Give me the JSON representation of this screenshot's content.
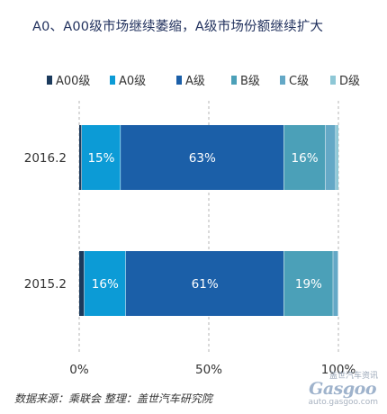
{
  "chart_data": {
    "type": "bar",
    "orientation": "horizontal",
    "stacked": true,
    "title": "A0、A00级市场继续萎缩，A级市场份额继续扩大",
    "categories": [
      "2016.2",
      "2015.2"
    ],
    "series": [
      {
        "name": "A00级",
        "color": "#1b3a5c",
        "values": [
          1,
          2
        ],
        "labels": [
          "",
          ""
        ]
      },
      {
        "name": "A0级",
        "color": "#0c9bd6",
        "values": [
          15,
          16
        ],
        "labels": [
          "15%",
          "16%"
        ]
      },
      {
        "name": "A级",
        "color": "#1b5fa8",
        "values": [
          63,
          61
        ],
        "labels": [
          "63%",
          "61%"
        ]
      },
      {
        "name": "B级",
        "color": "#4ba0b8",
        "values": [
          16,
          19
        ],
        "labels": [
          "16%",
          "19%"
        ]
      },
      {
        "name": "C级",
        "color": "#64a8c6",
        "values": [
          4,
          2
        ],
        "labels": [
          "",
          ""
        ]
      },
      {
        "name": "D级",
        "color": "#8ec7d6",
        "values": [
          1,
          0
        ],
        "labels": [
          "",
          ""
        ]
      }
    ],
    "xlim": [
      0,
      100
    ],
    "xticks": [
      0,
      50,
      100
    ],
    "xtick_labels": [
      "0%",
      "50%",
      "100%"
    ],
    "grid": "vertical-dashed",
    "legend_position": "top"
  },
  "source_text": "数据来源：乘联会    整理：盖世汽车研究院",
  "watermark": {
    "cn": "盖世汽车资讯",
    "logo": "Gasgoo",
    "url": "auto.gasgoo.com"
  }
}
